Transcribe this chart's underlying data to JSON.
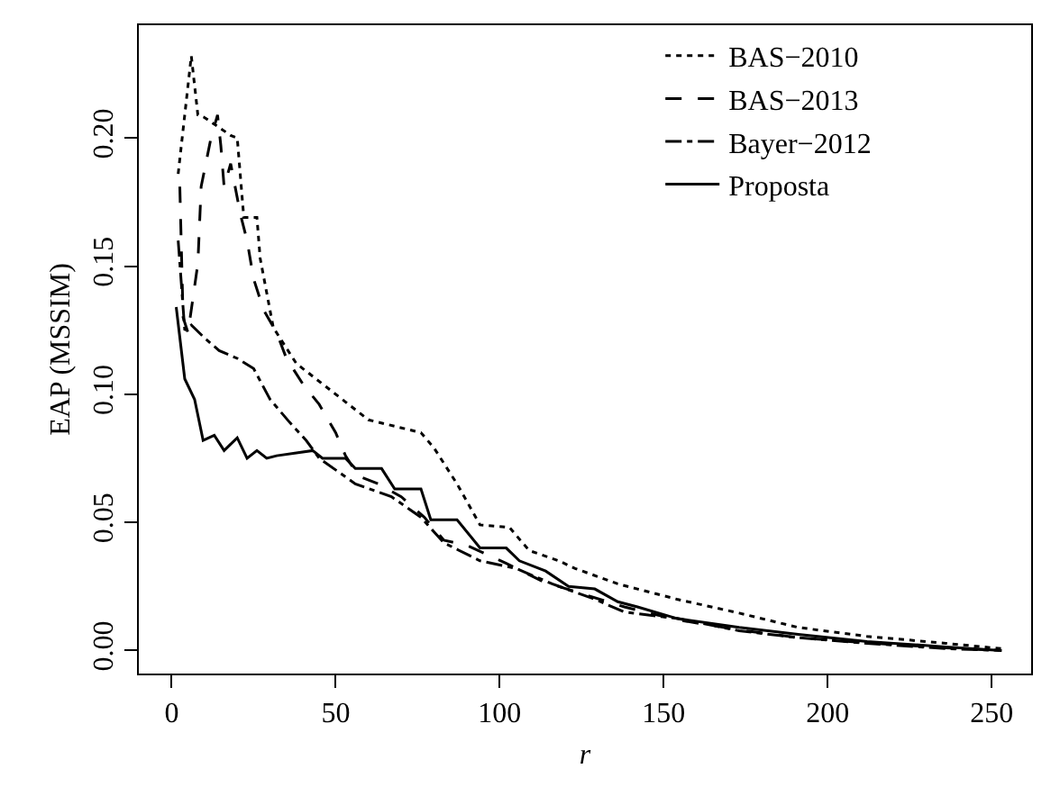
{
  "chart_data": {
    "type": "line",
    "xlabel": "r",
    "ylabel": "EAP (MSSIM)",
    "xlim": [
      -10,
      262
    ],
    "ylim": [
      -0.009,
      0.244
    ],
    "xticks": [
      0,
      50,
      100,
      150,
      200,
      250
    ],
    "yticks": [
      {
        "value": 0,
        "label": "0.00"
      },
      {
        "value": 0.05,
        "label": "0.05"
      },
      {
        "value": 0.1,
        "label": "0.10"
      },
      {
        "value": 0.15,
        "label": "0.15"
      },
      {
        "value": 0.2,
        "label": "0.20"
      }
    ],
    "grid": false,
    "legend": "top right",
    "marker": "none",
    "series": [
      {
        "name": "BAS−2010",
        "color": "#000000",
        "line_style": "dotted",
        "x": [
          2,
          6,
          8,
          10,
          18,
          20,
          22,
          26,
          27,
          31,
          38,
          47,
          60,
          76,
          80,
          87,
          94,
          103,
          109,
          118,
          123,
          136,
          142,
          154,
          173,
          191,
          212,
          236,
          253
        ],
        "values": [
          0.186,
          0.232,
          0.209,
          0.208,
          0.201,
          0.2,
          0.169,
          0.169,
          0.153,
          0.126,
          0.112,
          0.103,
          0.09,
          0.085,
          0.079,
          0.065,
          0.049,
          0.048,
          0.039,
          0.035,
          0.032,
          0.026,
          0.024,
          0.02,
          0.0146,
          0.009,
          0.0055,
          0.0028,
          0.0007
        ]
      },
      {
        "name": "BAS−2013",
        "color": "#000000",
        "line_style": "dashed",
        "x": [
          2.5,
          3.5,
          5,
          8,
          9,
          12,
          14,
          15,
          16,
          18,
          21,
          23,
          25,
          28,
          32,
          35,
          40,
          45,
          50,
          53,
          57,
          63,
          70,
          77,
          83,
          90,
          102,
          113,
          123,
          138,
          154,
          173,
          191,
          212,
          236,
          253
        ],
        "values": [
          0.181,
          0.13,
          0.124,
          0.151,
          0.181,
          0.2,
          0.209,
          0.197,
          0.181,
          0.19,
          0.17,
          0.16,
          0.145,
          0.133,
          0.124,
          0.114,
          0.104,
          0.096,
          0.085,
          0.076,
          0.068,
          0.065,
          0.06,
          0.052,
          0.043,
          0.041,
          0.034,
          0.027,
          0.023,
          0.017,
          0.012,
          0.008,
          0.005,
          0.003,
          0.001,
          0.0
        ]
      },
      {
        "name": "Bayer−2012",
        "color": "#000000",
        "line_style": "dashdot",
        "x": [
          2,
          4,
          6,
          10,
          14.5,
          20,
          25,
          30,
          36,
          41,
          45,
          56,
          67,
          76,
          83,
          94,
          105,
          116,
          129,
          138,
          154,
          173,
          191,
          212,
          236,
          253
        ],
        "values": [
          0.16,
          0.125,
          0.127,
          0.122,
          0.117,
          0.114,
          0.11,
          0.098,
          0.089,
          0.082,
          0.075,
          0.065,
          0.06,
          0.052,
          0.042,
          0.035,
          0.032,
          0.026,
          0.02,
          0.015,
          0.0125,
          0.0077,
          0.005,
          0.0028,
          0.0007,
          0.0
        ]
      },
      {
        "name": "Proposta",
        "color": "#000000",
        "line_style": "solid",
        "x": [
          1.4,
          4,
          7,
          9.6,
          13,
          16,
          20,
          23,
          26,
          29,
          32,
          43,
          46,
          53,
          56,
          64,
          68,
          76,
          79,
          87,
          94,
          102,
          106,
          114,
          121,
          129,
          136,
          142,
          154,
          173,
          191,
          212,
          236,
          253
        ],
        "values": [
          0.134,
          0.106,
          0.098,
          0.082,
          0.084,
          0.078,
          0.083,
          0.075,
          0.078,
          0.075,
          0.076,
          0.078,
          0.075,
          0.075,
          0.071,
          0.071,
          0.063,
          0.063,
          0.051,
          0.051,
          0.04,
          0.04,
          0.035,
          0.031,
          0.025,
          0.024,
          0.019,
          0.017,
          0.0125,
          0.009,
          0.0063,
          0.0035,
          0.0014,
          0.0
        ]
      }
    ]
  }
}
